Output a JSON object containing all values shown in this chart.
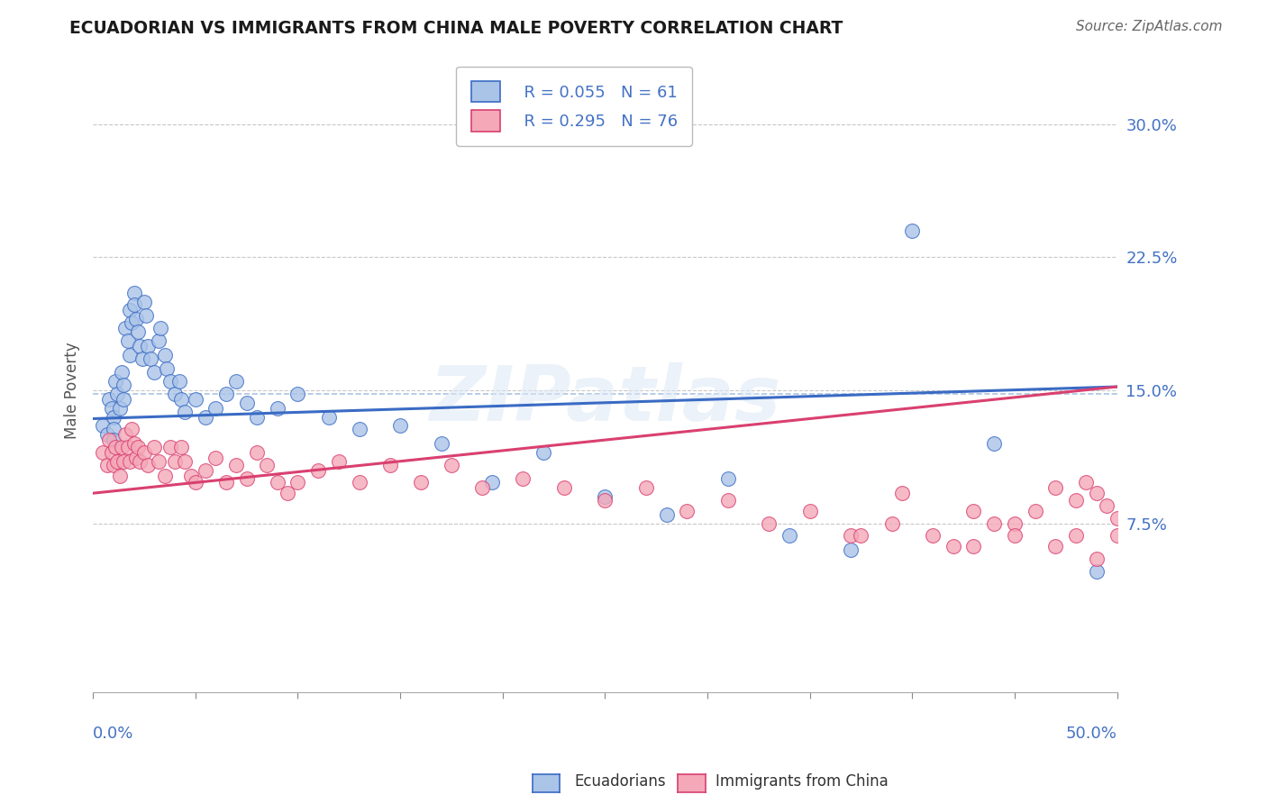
{
  "title": "ECUADORIAN VS IMMIGRANTS FROM CHINA MALE POVERTY CORRELATION CHART",
  "source": "Source: ZipAtlas.com",
  "ylabel": "Male Poverty",
  "xlim": [
    0.0,
    0.5
  ],
  "ylim": [
    -0.02,
    0.32
  ],
  "legend_r1": "R = 0.055",
  "legend_n1": "N = 61",
  "legend_r2": "R = 0.295",
  "legend_n2": "N = 76",
  "blue_color": "#aac4e8",
  "pink_color": "#f4a8b8",
  "blue_line_color": "#3a6bc4",
  "pink_line_color": "#d94070",
  "blue_dashed_color": "#8aaad4",
  "background_color": "#ffffff",
  "watermark": "ZIPatlas",
  "blue_scatter_x": [
    0.005,
    0.007,
    0.008,
    0.009,
    0.01,
    0.01,
    0.01,
    0.011,
    0.012,
    0.013,
    0.014,
    0.015,
    0.015,
    0.016,
    0.017,
    0.018,
    0.018,
    0.019,
    0.02,
    0.02,
    0.021,
    0.022,
    0.023,
    0.024,
    0.025,
    0.026,
    0.027,
    0.028,
    0.03,
    0.032,
    0.033,
    0.035,
    0.036,
    0.038,
    0.04,
    0.042,
    0.043,
    0.045,
    0.05,
    0.055,
    0.06,
    0.065,
    0.07,
    0.075,
    0.08,
    0.09,
    0.1,
    0.115,
    0.13,
    0.15,
    0.17,
    0.195,
    0.22,
    0.25,
    0.28,
    0.31,
    0.34,
    0.37,
    0.4,
    0.44,
    0.49
  ],
  "blue_scatter_y": [
    0.13,
    0.125,
    0.145,
    0.14,
    0.135,
    0.128,
    0.122,
    0.155,
    0.148,
    0.14,
    0.16,
    0.153,
    0.145,
    0.185,
    0.178,
    0.17,
    0.195,
    0.188,
    0.205,
    0.198,
    0.19,
    0.183,
    0.175,
    0.168,
    0.2,
    0.192,
    0.175,
    0.168,
    0.16,
    0.178,
    0.185,
    0.17,
    0.162,
    0.155,
    0.148,
    0.155,
    0.145,
    0.138,
    0.145,
    0.135,
    0.14,
    0.148,
    0.155,
    0.143,
    0.135,
    0.14,
    0.148,
    0.135,
    0.128,
    0.13,
    0.12,
    0.098,
    0.115,
    0.09,
    0.08,
    0.1,
    0.068,
    0.06,
    0.24,
    0.12,
    0.048
  ],
  "pink_scatter_x": [
    0.005,
    0.007,
    0.008,
    0.009,
    0.01,
    0.011,
    0.012,
    0.013,
    0.014,
    0.015,
    0.016,
    0.017,
    0.018,
    0.019,
    0.02,
    0.021,
    0.022,
    0.023,
    0.025,
    0.027,
    0.03,
    0.032,
    0.035,
    0.038,
    0.04,
    0.043,
    0.045,
    0.048,
    0.05,
    0.055,
    0.06,
    0.065,
    0.07,
    0.075,
    0.08,
    0.085,
    0.09,
    0.095,
    0.1,
    0.11,
    0.12,
    0.13,
    0.145,
    0.16,
    0.175,
    0.19,
    0.21,
    0.23,
    0.25,
    0.27,
    0.29,
    0.31,
    0.33,
    0.35,
    0.37,
    0.39,
    0.41,
    0.43,
    0.45,
    0.47,
    0.48,
    0.49,
    0.5,
    0.5,
    0.495,
    0.49,
    0.485,
    0.48,
    0.47,
    0.46,
    0.45,
    0.44,
    0.43,
    0.42,
    0.395,
    0.375
  ],
  "pink_scatter_y": [
    0.115,
    0.108,
    0.122,
    0.115,
    0.108,
    0.118,
    0.11,
    0.102,
    0.118,
    0.11,
    0.125,
    0.118,
    0.11,
    0.128,
    0.12,
    0.112,
    0.118,
    0.11,
    0.115,
    0.108,
    0.118,
    0.11,
    0.102,
    0.118,
    0.11,
    0.118,
    0.11,
    0.102,
    0.098,
    0.105,
    0.112,
    0.098,
    0.108,
    0.1,
    0.115,
    0.108,
    0.098,
    0.092,
    0.098,
    0.105,
    0.11,
    0.098,
    0.108,
    0.098,
    0.108,
    0.095,
    0.1,
    0.095,
    0.088,
    0.095,
    0.082,
    0.088,
    0.075,
    0.082,
    0.068,
    0.075,
    0.068,
    0.062,
    0.075,
    0.062,
    0.068,
    0.055,
    0.068,
    0.078,
    0.085,
    0.092,
    0.098,
    0.088,
    0.095,
    0.082,
    0.068,
    0.075,
    0.082,
    0.062,
    0.092,
    0.068
  ],
  "blue_line_x0": 0.0,
  "blue_line_x1": 0.5,
  "blue_line_y0": 0.134,
  "blue_line_y1": 0.152,
  "pink_line_x0": 0.0,
  "pink_line_x1": 0.5,
  "pink_line_y0": 0.092,
  "pink_line_y1": 0.152,
  "dashed_line_y": 0.148
}
